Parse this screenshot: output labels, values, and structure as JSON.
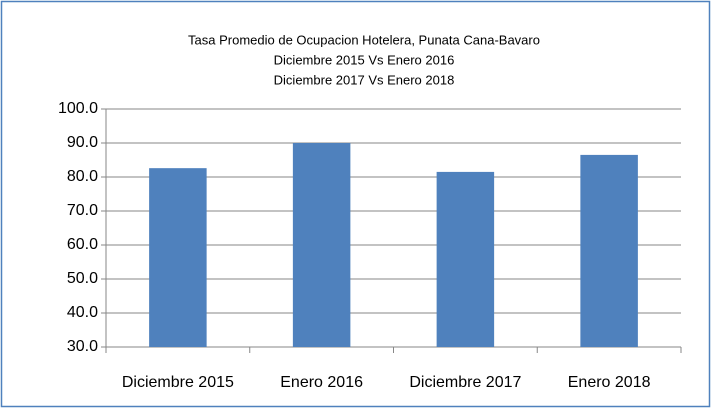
{
  "chart_data": {
    "type": "bar",
    "title": [
      "Tasa Promedio de Ocupacion Hotelera, Punata Cana-Bavaro",
      "Diciembre 2015 Vs Enero 2016",
      "Diciembre 2017 Vs Enero 2018"
    ],
    "categories": [
      "Diciembre 2015",
      "Enero 2016",
      "Diciembre 2017",
      "Enero 2018"
    ],
    "values": [
      82.6,
      90.0,
      81.5,
      86.5
    ],
    "color": "#4f81bd",
    "ylim": [
      30,
      100
    ],
    "yticks": [
      {
        "value": 30,
        "label": "30.0"
      },
      {
        "value": 40,
        "label": "40.0"
      },
      {
        "value": 50,
        "label": "50.0"
      },
      {
        "value": 60,
        "label": "60.0"
      },
      {
        "value": 70,
        "label": "70.0"
      },
      {
        "value": 80,
        "label": "80.0"
      },
      {
        "value": 90,
        "label": "90.0"
      },
      {
        "value": 100,
        "label": "100.0"
      }
    ],
    "grid": true
  }
}
